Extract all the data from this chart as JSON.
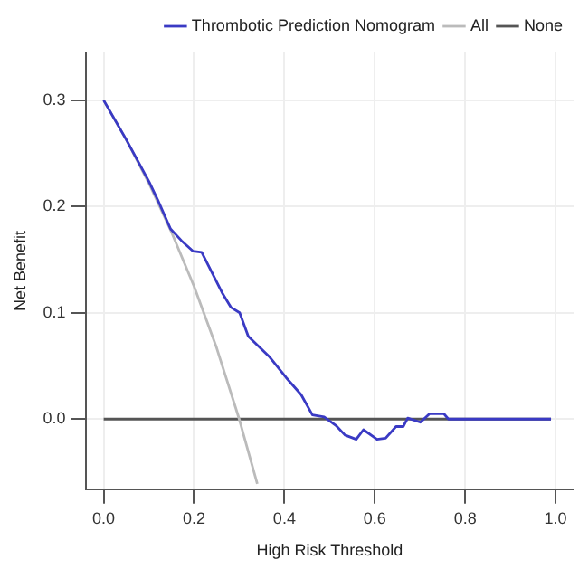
{
  "chart_data": {
    "type": "line",
    "xlabel": "High Risk Threshold",
    "ylabel": "Net Benefit",
    "xlim": [
      -0.04,
      1.04
    ],
    "ylim": [
      -0.066,
      0.345
    ],
    "xticks": [
      {
        "value": 0,
        "label": "0.0"
      },
      0.2,
      0.4,
      0.6,
      0.8,
      {
        "value": 1,
        "label": "1.0"
      }
    ],
    "yticks": [
      {
        "value": 0,
        "label": "0.0"
      },
      0.1,
      0.2,
      0.3
    ],
    "grid": true,
    "legend": "top right",
    "marker": "none",
    "line_style": "solid",
    "series": [
      {
        "name": "Thrombotic Prediction Nomogram",
        "color": "#3a3ac4",
        "x": [
          0,
          0.05,
          0.101,
          0.12,
          0.148,
          0.172,
          0.198,
          0.217,
          0.243,
          0.262,
          0.282,
          0.301,
          0.32,
          0.366,
          0.404,
          0.437,
          0.462,
          0.488,
          0.514,
          0.534,
          0.559,
          0.575,
          0.605,
          0.624,
          0.647,
          0.663,
          0.673,
          0.701,
          0.721,
          0.753,
          0.763,
          0.99
        ],
        "values": [
          0.3,
          0.263,
          0.223,
          0.206,
          0.179,
          0.168,
          0.158,
          0.157,
          0.135,
          0.119,
          0.105,
          0.1,
          0.078,
          0.059,
          0.039,
          0.023,
          0.004,
          0.002,
          -0.006,
          -0.015,
          -0.019,
          -0.01,
          -0.019,
          -0.018,
          -0.007,
          -0.007,
          0.001,
          -0.003,
          0.005,
          0.005,
          0,
          0
        ]
      },
      {
        "name": "All",
        "color": "#bbbbbb",
        "x": [
          0,
          0.05,
          0.1,
          0.15,
          0.2,
          0.25,
          0.3,
          0.34
        ],
        "values": [
          0.3,
          0.263,
          0.222,
          0.176,
          0.125,
          0.067,
          0,
          -0.061
        ]
      },
      {
        "name": "None",
        "color": "#555555",
        "x": [
          0,
          0.99
        ],
        "values": [
          0,
          0
        ]
      }
    ]
  }
}
